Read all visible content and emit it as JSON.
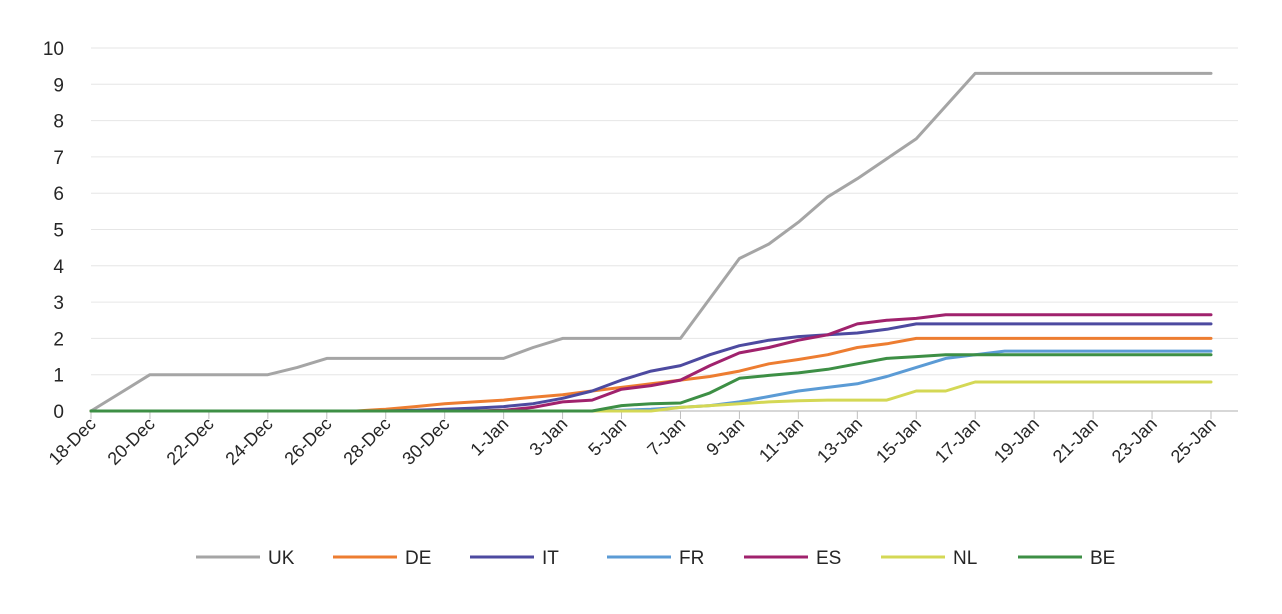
{
  "chart_data": {
    "type": "line",
    "title": "",
    "xlabel": "",
    "ylabel": "",
    "ylim": [
      0,
      10
    ],
    "yticks": [
      "0",
      "1",
      "2",
      "3",
      "4",
      "5",
      "6",
      "7",
      "8",
      "9",
      "10"
    ],
    "grid": true,
    "legend_position": "bottom",
    "x": [
      "18-Dec",
      "19-Dec",
      "20-Dec",
      "21-Dec",
      "22-Dec",
      "23-Dec",
      "24-Dec",
      "25-Dec",
      "26-Dec",
      "27-Dec",
      "28-Dec",
      "29-Dec",
      "30-Dec",
      "31-Dec",
      "1-Jan",
      "2-Jan",
      "3-Jan",
      "4-Jan",
      "5-Jan",
      "6-Jan",
      "7-Jan",
      "8-Jan",
      "9-Jan",
      "10-Jan",
      "11-Jan",
      "12-Jan",
      "13-Jan",
      "14-Jan",
      "15-Jan",
      "16-Jan",
      "17-Jan",
      "18-Jan",
      "19-Jan",
      "20-Jan",
      "21-Jan",
      "22-Jan",
      "23-Jan",
      "24-Jan",
      "25-Jan"
    ],
    "xtick_labels": [
      "18-Dec",
      "20-Dec",
      "22-Dec",
      "24-Dec",
      "26-Dec",
      "28-Dec",
      "30-Dec",
      "1-Jan",
      "3-Jan",
      "5-Jan",
      "7-Jan",
      "9-Jan",
      "11-Jan",
      "13-Jan",
      "15-Jan",
      "17-Jan",
      "19-Jan",
      "21-Jan",
      "23-Jan",
      "25-Jan"
    ],
    "series": [
      {
        "name": "UK",
        "color": "#a5a5a5",
        "values": [
          0,
          0.5,
          1,
          1,
          1,
          1,
          1,
          1.2,
          1.45,
          1.45,
          1.45,
          1.45,
          1.45,
          1.45,
          1.45,
          1.75,
          2,
          2,
          2,
          2,
          2,
          3.1,
          4.2,
          4.6,
          5.2,
          5.9,
          6.4,
          6.95,
          7.5,
          8.4,
          9.3,
          9.3,
          9.3,
          9.3,
          9.3,
          9.3,
          9.3,
          9.3,
          9.3
        ]
      },
      {
        "name": "DE",
        "color": "#ed7d31",
        "values": [
          0,
          0,
          0,
          0,
          0,
          0,
          0,
          0,
          0,
          0,
          0.05,
          0.12,
          0.2,
          0.25,
          0.3,
          0.38,
          0.45,
          0.55,
          0.65,
          0.75,
          0.85,
          0.95,
          1.1,
          1.3,
          1.42,
          1.55,
          1.75,
          1.85,
          2,
          2,
          2,
          2,
          2,
          2,
          2,
          2,
          2,
          2,
          2
        ]
      },
      {
        "name": "IT",
        "color": "#4d4aa0",
        "values": [
          0,
          0,
          0,
          0,
          0,
          0,
          0,
          0,
          0,
          0,
          0,
          0.02,
          0.05,
          0.08,
          0.12,
          0.2,
          0.35,
          0.55,
          0.85,
          1.1,
          1.25,
          1.55,
          1.8,
          1.95,
          2.05,
          2.1,
          2.15,
          2.25,
          2.4,
          2.4,
          2.4,
          2.4,
          2.4,
          2.4,
          2.4,
          2.4,
          2.4,
          2.4,
          2.4
        ]
      },
      {
        "name": "FR",
        "color": "#5b9bd5",
        "values": [
          0,
          0,
          0,
          0,
          0,
          0,
          0,
          0,
          0,
          0,
          0,
          0,
          0,
          0,
          0,
          0,
          0,
          0,
          0.02,
          0.05,
          0.1,
          0.15,
          0.25,
          0.4,
          0.55,
          0.65,
          0.75,
          0.95,
          1.2,
          1.45,
          1.55,
          1.65,
          1.65,
          1.65,
          1.65,
          1.65,
          1.65,
          1.65,
          1.65
        ]
      },
      {
        "name": "ES",
        "color": "#a0226d",
        "values": [
          0,
          0,
          0,
          0,
          0,
          0,
          0,
          0,
          0,
          0,
          0,
          0,
          0,
          0,
          0.02,
          0.1,
          0.25,
          0.3,
          0.6,
          0.7,
          0.85,
          1.25,
          1.6,
          1.75,
          1.95,
          2.1,
          2.4,
          2.5,
          2.55,
          2.65,
          2.65,
          2.65,
          2.65,
          2.65,
          2.65,
          2.65,
          2.65,
          2.65,
          2.65
        ]
      },
      {
        "name": "NL",
        "color": "#d4d855",
        "values": [
          0,
          0,
          0,
          0,
          0,
          0,
          0,
          0,
          0,
          0,
          0,
          0,
          0,
          0,
          0,
          0,
          0,
          0,
          0,
          0,
          0.1,
          0.15,
          0.2,
          0.25,
          0.28,
          0.3,
          0.3,
          0.3,
          0.55,
          0.55,
          0.8,
          0.8,
          0.8,
          0.8,
          0.8,
          0.8,
          0.8,
          0.8,
          0.8
        ]
      },
      {
        "name": "BE",
        "color": "#3d8f45",
        "values": [
          0,
          0,
          0,
          0,
          0,
          0,
          0,
          0,
          0,
          0,
          0,
          0,
          0,
          0,
          0,
          0,
          0,
          0,
          0.15,
          0.2,
          0.22,
          0.5,
          0.9,
          0.98,
          1.05,
          1.15,
          1.3,
          1.45,
          1.5,
          1.55,
          1.55,
          1.55,
          1.55,
          1.55,
          1.55,
          1.55,
          1.55,
          1.55,
          1.55
        ]
      }
    ]
  }
}
